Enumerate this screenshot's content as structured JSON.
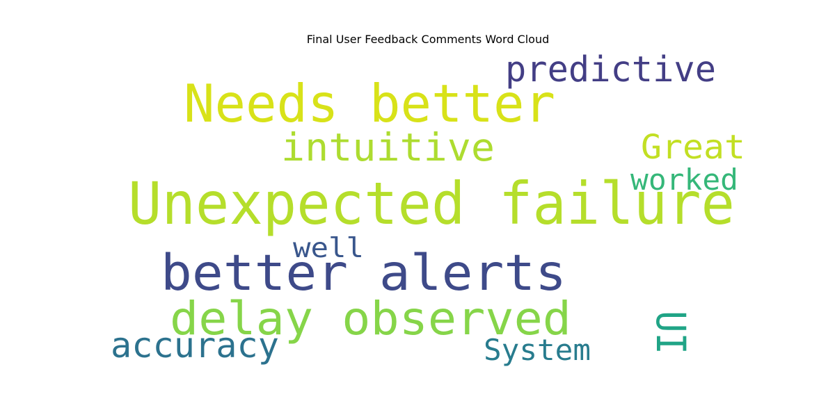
{
  "title": "Final User Feedback Comments Word Cloud",
  "words": [
    {
      "text": "Unexpected failure",
      "color": "#b5de2b"
    },
    {
      "text": "Needs better",
      "color": "#d8e219"
    },
    {
      "text": "better alerts",
      "color": "#3e4a89"
    },
    {
      "text": "delay observed",
      "color": "#86d549"
    },
    {
      "text": "predictive",
      "color": "#433e85"
    },
    {
      "text": "intuitive",
      "color": "#addc30"
    },
    {
      "text": "Great",
      "color": "#c2df23"
    },
    {
      "text": "worked",
      "color": "#35b779"
    },
    {
      "text": "well",
      "color": "#39568c"
    },
    {
      "text": "accuracy",
      "color": "#2c728e"
    },
    {
      "text": "System",
      "color": "#287c8e"
    },
    {
      "text": "UI",
      "color": "#20a486"
    }
  ]
}
